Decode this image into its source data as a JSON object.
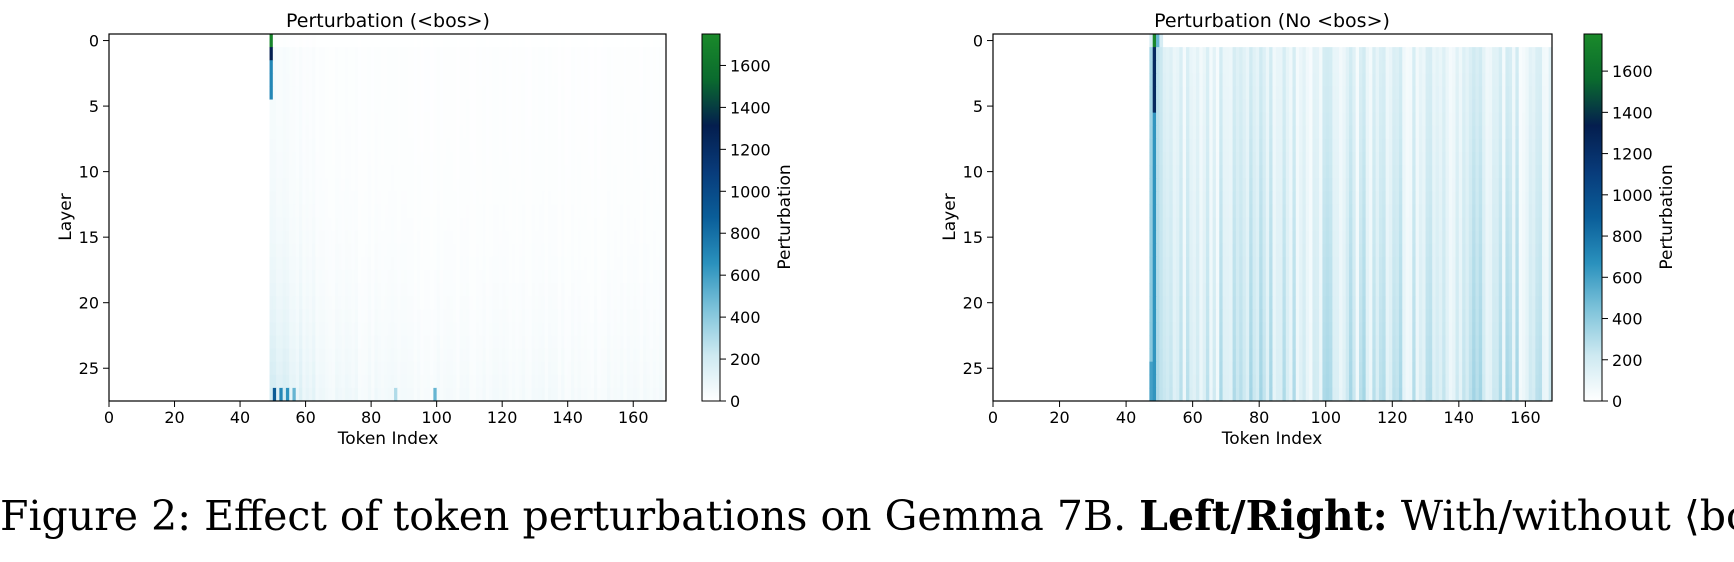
{
  "caption": {
    "label": "Figure 2:",
    "text": "Effect of token perturbations on Gemma 7B.",
    "bold": "Left/Right:",
    "rest": "With/without ⟨bos⟩."
  },
  "colors": {
    "colormap": [
      "#ffffff",
      "#cde9f1",
      "#7ec3da",
      "#2a91bd",
      "#0a5e99",
      "#083b7a",
      "#041e4e",
      "#0a6a2e",
      "#1a8a2a"
    ]
  },
  "chart_data": [
    {
      "type": "heatmap",
      "title": "Perturbation (<bos>)",
      "xlabel": "Token Index",
      "ylabel": "Layer",
      "xlim": [
        0,
        170
      ],
      "ylim": [
        27.5,
        -0.5
      ],
      "xticks": [
        0,
        20,
        40,
        60,
        80,
        100,
        120,
        140,
        160
      ],
      "yticks": [
        0,
        5,
        10,
        15,
        20,
        25
      ],
      "layers": 28,
      "tokens": 170,
      "active_start": 49,
      "colorbar": {
        "label": "Perturbation",
        "range": [
          0,
          1750
        ],
        "ticks": [
          0,
          200,
          400,
          600,
          800,
          1000,
          1200,
          1400,
          1600
        ]
      },
      "highlights": [
        {
          "token": 49,
          "layers": [
            0,
            0
          ],
          "value": 1700
        },
        {
          "token": 49,
          "layers": [
            1,
            1
          ],
          "value": 1300
        },
        {
          "token": 49,
          "layers": [
            2,
            4
          ],
          "value": 700
        },
        {
          "token": 50,
          "layers": [
            27,
            27
          ],
          "value": 900
        },
        {
          "token": 52,
          "layers": [
            27,
            27
          ],
          "value": 700
        },
        {
          "token": 54,
          "layers": [
            27,
            27
          ],
          "value": 650
        },
        {
          "token": 56,
          "layers": [
            27,
            27
          ],
          "value": 500
        },
        {
          "token": 99,
          "layers": [
            27,
            27
          ],
          "value": 500
        },
        {
          "token": 87,
          "layers": [
            27,
            27
          ],
          "value": 300
        }
      ]
    },
    {
      "type": "heatmap",
      "title": "Perturbation (No <bos>)",
      "xlabel": "Token Index",
      "ylabel": "Layer",
      "xlim": [
        0,
        168
      ],
      "ylim": [
        27.5,
        -0.5
      ],
      "xticks": [
        0,
        20,
        40,
        60,
        80,
        100,
        120,
        140,
        160
      ],
      "yticks": [
        0,
        5,
        10,
        15,
        20,
        25
      ],
      "layers": 28,
      "tokens": 168,
      "active_start": 47,
      "colorbar": {
        "label": "Perturbation",
        "range": [
          0,
          1780
        ],
        "ticks": [
          0,
          200,
          400,
          600,
          800,
          1000,
          1200,
          1400,
          1600
        ]
      },
      "highlights": [
        {
          "token": 48,
          "layers": [
            0,
            0
          ],
          "value": 1750
        },
        {
          "token": 48,
          "layers": [
            1,
            5
          ],
          "value": 1250
        },
        {
          "token": 48,
          "layers": [
            6,
            27
          ],
          "value": 650
        },
        {
          "token": 49,
          "layers": [
            0,
            0
          ],
          "value": 500
        },
        {
          "token": 47,
          "layers": [
            25,
            27
          ],
          "value": 600
        }
      ]
    }
  ]
}
